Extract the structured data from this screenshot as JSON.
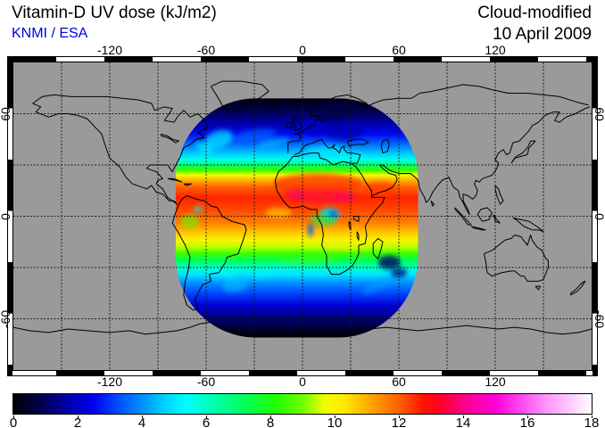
{
  "header": {
    "title": "Vitamin-D UV dose (kJ/m2)",
    "source": "KNMI / ESA",
    "mode": "Cloud-modified",
    "date": "10 April 2009"
  },
  "colors": {
    "source_text": "#0000e0",
    "map_background": "#9a9a9a",
    "coastline": "#000000",
    "graticule": "#151515"
  },
  "axes": {
    "lon_ticks": [
      -120,
      -60,
      0,
      60,
      120
    ],
    "lat_ticks": [
      60,
      0,
      -60
    ],
    "lon_range": [
      -180,
      180
    ],
    "lat_range": [
      -90,
      90
    ],
    "grid_step_deg": 30
  },
  "colorbar": {
    "min": 0,
    "max": 18,
    "unit": "kJ/m2",
    "tick_labels": [
      0,
      2,
      4,
      6,
      8,
      10,
      12,
      14,
      16,
      18
    ],
    "stops": [
      [
        0,
        "#000000"
      ],
      [
        0.8,
        "#000048"
      ],
      [
        1.6,
        "#0000a0"
      ],
      [
        2.5,
        "#0000f0"
      ],
      [
        3.2,
        "#0048ff"
      ],
      [
        4.0,
        "#0090ff"
      ],
      [
        4.8,
        "#00d8ff"
      ],
      [
        5.4,
        "#00ffff"
      ],
      [
        6.3,
        "#00ffa8"
      ],
      [
        7.2,
        "#00ff58"
      ],
      [
        8.2,
        "#20ff00"
      ],
      [
        9.0,
        "#70ff00"
      ],
      [
        9.7,
        "#f0ff00"
      ],
      [
        10.3,
        "#ffe800"
      ],
      [
        11.0,
        "#ffb000"
      ],
      [
        12.0,
        "#ff6000"
      ],
      [
        12.8,
        "#ff1000"
      ],
      [
        13.3,
        "#ff0028"
      ],
      [
        14.0,
        "#ff0088"
      ],
      [
        15.0,
        "#ff00d8"
      ],
      [
        15.8,
        "#ff48f0"
      ],
      [
        16.6,
        "#ff98fc"
      ],
      [
        17.3,
        "#ffc8ff"
      ],
      [
        18,
        "#ffffff"
      ]
    ]
  },
  "chart_data": {
    "type": "heatmap",
    "title": "Vitamin-D UV dose (kJ/m2)",
    "subtitle": "KNMI / ESA",
    "annotation_right": [
      "Cloud-modified",
      "10 April 2009"
    ],
    "projection": "equirectangular",
    "lon_range": [
      -180,
      180
    ],
    "lat_range": [
      -90,
      90
    ],
    "value_range_kj_m2": [
      0,
      18
    ],
    "no_data_color": "#9a9a9a",
    "swath": {
      "lon_range": [
        -79,
        72
      ],
      "lat_range": [
        -71,
        69
      ],
      "corner_radius_deg": 50,
      "description": "Single-orbit rounded-square swath centred near 0E/0N; dose decreases from tropical maximum toward both poles"
    },
    "lat_profile": [
      [
        69,
        0.2
      ],
      [
        62,
        0.8
      ],
      [
        55,
        1.6
      ],
      [
        48,
        2.6
      ],
      [
        42,
        3.6
      ],
      [
        37,
        4.6
      ],
      [
        33,
        5.6
      ],
      [
        30,
        7.0
      ],
      [
        27,
        8.4
      ],
      [
        24,
        9.8
      ],
      [
        21,
        11.0
      ],
      [
        17,
        12.0
      ],
      [
        11,
        12.6
      ],
      [
        3,
        12.2
      ],
      [
        -4,
        11.6
      ],
      [
        -9,
        10.8
      ],
      [
        -14,
        10.0
      ],
      [
        -18,
        9.4
      ],
      [
        -22,
        8.4
      ],
      [
        -26,
        7.2
      ],
      [
        -30,
        6.0
      ],
      [
        -34,
        5.0
      ],
      [
        -39,
        4.0
      ],
      [
        -45,
        3.2
      ],
      [
        -52,
        2.2
      ],
      [
        -59,
        1.3
      ],
      [
        -66,
        0.5
      ],
      [
        -71,
        0.15
      ]
    ],
    "features": [
      {
        "name": "natl-cyclone-core",
        "lon": -52,
        "lat": 45,
        "rx": 9,
        "ry": 5,
        "rot": -15,
        "value": 5.2,
        "opacity": 0.7
      },
      {
        "name": "natl-cyclone-arm",
        "lon": -61,
        "lat": 40,
        "rx": 6,
        "ry": 3,
        "rot": 20,
        "value": 5.5,
        "opacity": 0.6
      },
      {
        "name": "natl-front",
        "lon": -30,
        "lat": 47,
        "rx": 14,
        "ry": 3.5,
        "rot": -8,
        "value": 3.6,
        "opacity": 0.65
      },
      {
        "name": "natl-front-2",
        "lon": -18,
        "lat": 43,
        "rx": 10,
        "ry": 2.5,
        "rot": -12,
        "value": 5.0,
        "opacity": 0.45
      },
      {
        "name": "europe-cloud",
        "lon": 8,
        "lat": 52,
        "rx": 10,
        "ry": 5,
        "rot": 0,
        "value": 2.0,
        "opacity": 0.75
      },
      {
        "name": "europe-cloud-2",
        "lon": 26,
        "lat": 50,
        "rx": 12,
        "ry": 6,
        "rot": 0,
        "value": 1.8,
        "opacity": 0.7
      },
      {
        "name": "scandinavia-dark",
        "lon": 18,
        "lat": 61,
        "rx": 14,
        "ry": 5,
        "rot": 0,
        "value": 0.8,
        "opacity": 0.75
      },
      {
        "name": "mediterranean-clear",
        "lon": 15,
        "lat": 38,
        "rx": 13,
        "ry": 3.5,
        "rot": 0,
        "value": 5.2,
        "opacity": 0.6
      },
      {
        "name": "mediterranean-clear-2",
        "lon": 30,
        "lat": 35,
        "rx": 8,
        "ry": 2.5,
        "rot": 0,
        "value": 5.4,
        "opacity": 0.5
      },
      {
        "name": "sahara-high",
        "lon": 10,
        "lat": 19,
        "rx": 28,
        "ry": 6,
        "rot": 0,
        "value": 12.4,
        "opacity": 0.75
      },
      {
        "name": "sahel-peak",
        "lon": 12,
        "lat": 12,
        "rx": 20,
        "ry": 4,
        "rot": 0,
        "value": 13.6,
        "opacity": 0.5
      },
      {
        "name": "sahel-peak-2",
        "lon": 27,
        "lat": 11,
        "rx": 7,
        "ry": 2.5,
        "rot": 0,
        "value": 13.8,
        "opacity": 0.6
      },
      {
        "name": "wafrica-peak",
        "lon": -5,
        "lat": 13,
        "rx": 6,
        "ry": 2.5,
        "rot": 0,
        "value": 13.8,
        "opacity": 0.55
      },
      {
        "name": "arabia-high",
        "lon": 48,
        "lat": 16,
        "rx": 10,
        "ry": 4,
        "rot": 0,
        "value": 12.4,
        "opacity": 0.65
      },
      {
        "name": "congo-convection",
        "lon": 17,
        "lat": 1,
        "rx": 6,
        "ry": 4,
        "rot": 0,
        "value": 4.8,
        "opacity": 0.8
      },
      {
        "name": "congo-convection-core",
        "lon": 19,
        "lat": 1,
        "rx": 3,
        "ry": 2,
        "rot": 0,
        "value": 3.2,
        "opacity": 0.85
      },
      {
        "name": "congo-cloud-ring",
        "lon": 13,
        "lat": -2,
        "rx": 8,
        "ry": 4,
        "rot": 0,
        "value": 7.4,
        "opacity": 0.55
      },
      {
        "name": "congo-cloud-streak",
        "lon": 5,
        "lat": -8,
        "rx": 2,
        "ry": 4,
        "rot": 0,
        "value": 3.4,
        "opacity": 0.7
      },
      {
        "name": "equator-yellow-patch",
        "lon": -15,
        "lat": 2,
        "rx": 8,
        "ry": 3,
        "rot": 0,
        "value": 10.3,
        "opacity": 0.55
      },
      {
        "name": "samerica-cloud",
        "lon": -70,
        "lat": -3,
        "rx": 6,
        "ry": 4,
        "rot": 0,
        "value": 8.8,
        "opacity": 0.6
      },
      {
        "name": "samerica-speck",
        "lon": -65,
        "lat": 4,
        "rx": 3,
        "ry": 2,
        "rot": 0,
        "value": 5.2,
        "opacity": 0.6
      },
      {
        "name": "satlantic-front",
        "lon": -15,
        "lat": -31,
        "rx": 16,
        "ry": 2.5,
        "rot": -18,
        "value": 5.2,
        "opacity": 0.5
      },
      {
        "name": "satlantic-cyclone",
        "lon": -42,
        "lat": -40,
        "rx": 8,
        "ry": 4.5,
        "rot": -10,
        "value": 4.6,
        "opacity": 0.55
      },
      {
        "name": "satlantic-cyclone-arm",
        "lon": -50,
        "lat": -33,
        "rx": 10,
        "ry": 2.5,
        "rot": 15,
        "value": 5.4,
        "opacity": 0.45
      },
      {
        "name": "sindian-front",
        "lon": 48,
        "lat": -40,
        "rx": 12,
        "ry": 3,
        "rot": -25,
        "value": 4.2,
        "opacity": 0.5
      },
      {
        "name": "madagascar-storm",
        "lon": 54,
        "lat": -27,
        "rx": 7,
        "ry": 4,
        "rot": 0,
        "value": 1.1,
        "opacity": 0.8
      },
      {
        "name": "madagascar-storm-2",
        "lon": 60,
        "lat": -33,
        "rx": 5,
        "ry": 3,
        "rot": 0,
        "value": 1.3,
        "opacity": 0.7
      },
      {
        "name": "satlantic-green-band",
        "lon": 5,
        "lat": -25,
        "rx": 20,
        "ry": 3,
        "rot": -5,
        "value": 8.6,
        "opacity": 0.45
      },
      {
        "name": "satlantic-yellow-band",
        "lon": 25,
        "lat": -17,
        "rx": 14,
        "ry": 3,
        "rot": 0,
        "value": 10.2,
        "opacity": 0.5
      }
    ],
    "legend_position": "bottom",
    "grid": "dashed 30 degree graticule"
  }
}
